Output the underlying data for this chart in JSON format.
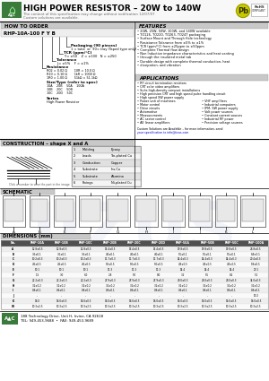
{
  "title": "HIGH POWER RESISTOR – 20W to 140W",
  "subtitle1": "The content of this specification may change without notification 12/07/07",
  "subtitle2": "Custom solutions are available.",
  "how_to_order_title": "HOW TO ORDER",
  "part_number": "RHP-10A-100 F Y B",
  "packaging_title": "Packaging (90 pieces)",
  "packaging_text": "1 = tube  or  90= tray (Taped type only)",
  "tcr_title": "TCR (ppm/°C)",
  "tcr_text": "Y = ±50    Z = ±100   N = ±250",
  "tolerance_title": "Tolerance",
  "tolerance_text": "J = ±5%    F = ±1%",
  "resistance_title": "Resistance",
  "resistance_lines": [
    "R02 = 0.02 Ω       10R = 10.0 Ω",
    "R10 = 0.10 Ω       1kR = 1000 Ω",
    "1R0 = 1.00 Ω       51kΩ = 51.1kΩ"
  ],
  "size_title": "Size/Type (refer to spec)",
  "size_lines": [
    "10A    20B    50A    100A",
    "10B    20C    50B",
    "10C    20D    50C"
  ],
  "series_title": "Series",
  "series_text": "High Power Resistor",
  "features_title": "FEATURES",
  "features": [
    "20W, 25W, 50W, 100W, and 140W available",
    "TO126, TO220, TO263, TO247 packaging",
    "Surface Mount and Through Hole technology",
    "Resistance Tolerance from ±5% to ±1%",
    "TCR (ppm/°C) from ±25ppm to ±50ppm",
    "Complete Thermal flow design",
    "Non Inductive impedance characteristics and heat venting",
    "through the insulated metal tab",
    "Durable design with complete thermal conduction, heat",
    "dissipation, and vibration"
  ],
  "applications_title": "APPLICATIONS",
  "applications_col1": [
    "RF circuit termination resistors",
    "CRT color video amplifiers",
    "Suits high-density compact installations",
    "High precision CRT and high speed pulse handling circuit",
    "High speed SW power supply",
    "Power unit of machines",
    "Motor control",
    "Drive circuits",
    "Automotive",
    "Measurements",
    "AC sector control",
    "AE linear amplifiers"
  ],
  "applications_col2": [
    "VHF amplifiers",
    "Industrial computers",
    "IPM, SW power supply",
    "Volt power sources",
    "Constant current sources",
    "Industrial RF power",
    "Precision voltage sources"
  ],
  "custom_line1": "Custom Solutions are Available – for more information, send",
  "custom_line2": "your specification to info@iizus.com",
  "construction_title": "CONSTRUCTION – shape X and A",
  "construction_note": "Click a number to view the part in the image",
  "construction_table": [
    [
      "1",
      "Molding",
      "Epoxy"
    ],
    [
      "2",
      "Leads",
      "Tin-plated Cu"
    ],
    [
      "3",
      "Conduction",
      "Copper"
    ],
    [
      "4",
      "Substrate",
      "Ins.Cu"
    ],
    [
      "5",
      "Substrate",
      "Alumina"
    ],
    [
      "6",
      "Fixings",
      "Ni-plated Cu"
    ]
  ],
  "schematic_title": "SCHEMATIC",
  "schematic_labels": [
    "A",
    "B",
    "E",
    "F",
    "G",
    "H",
    "I",
    "J",
    "K",
    "L"
  ],
  "dimensions_title": "DIMENSIONS (mm)",
  "dim_cols": [
    "No.",
    "RHP-10A",
    "RHP-10B",
    "RHP-10C",
    "RHP-20B",
    "RHP-20C",
    "RHP-20D",
    "RHP-50A",
    "RHP-50B",
    "RHP-50C",
    "RHP-100A"
  ],
  "dim_rows": [
    [
      "A",
      "12.8±0.5",
      "12.8±0.5",
      "12.8±0.5",
      "15.4±0.5",
      "15.4±0.5",
      "15.4±0.5",
      "19.8±0.5",
      "19.8±0.5",
      "19.8±0.5",
      "26.8±0.5"
    ],
    [
      "B",
      "3.5±0.1",
      "3.5±0.1",
      "3.5±0.1",
      "4.0±0.1",
      "4.0±0.1",
      "4.0±0.1",
      "5.5±0.1",
      "5.5±0.1",
      "5.5±0.1",
      "6.8±0.1"
    ],
    [
      "C",
      "10.2±0.3",
      "10.2±0.3",
      "10.2±0.3",
      "11.7±0.3",
      "11.7±0.3",
      "11.7±0.3",
      "14.4±0.3",
      "14.4±0.3",
      "14.4±0.3",
      "20.4±0.3"
    ],
    [
      "D",
      "4.5±0.5",
      "4.5±0.5",
      "4.5±0.5",
      "5.0±0.5",
      "5.0±0.5",
      "5.0±0.5",
      "4.9±0.5",
      "4.9±0.5",
      "4.9±0.5",
      "5.8±0.5"
    ],
    [
      "E",
      "10.1",
      "10.1",
      "10.1",
      "11.3",
      "11.3",
      "11.3",
      "14.4",
      "14.4",
      "14.4",
      "20.1"
    ],
    [
      "F",
      "1.5",
      "3.0",
      "6.0",
      "2.8",
      "5.0",
      "8.0",
      "3.2",
      "5.5",
      "8.2",
      "5.2"
    ],
    [
      "G",
      "22.2±0.3",
      "22.2±0.3",
      "22.2±0.3",
      "27.9±0.3",
      "27.9±0.3",
      "27.9±0.3",
      "28.0±0.3",
      "28.0±0.3",
      "28.0±0.3",
      "34.0±0.3"
    ],
    [
      "H",
      "3.2±0.2",
      "3.2±0.2",
      "3.2±0.2",
      "3.2±0.2",
      "3.2±0.2",
      "3.2±0.2",
      "3.2±0.2",
      "3.2±0.2",
      "3.2±0.2",
      "3.2±0.2"
    ],
    [
      "I",
      "0.8±0.1",
      "0.8±0.1",
      "0.8±0.1",
      "0.8±0.1",
      "0.8±0.1",
      "0.8±0.1",
      "0.8±0.1",
      "0.8±0.1",
      "0.8±0.1",
      "0.8±0.1"
    ],
    [
      "J",
      "-",
      "-",
      "-",
      "-",
      "-",
      "-",
      "-",
      "-",
      "-",
      "10.2"
    ],
    [
      "K",
      "16.0",
      "16.0±0.5",
      "16.0±0.5",
      "16.0±0.5",
      "16.0±0.5",
      "16.0±0.5",
      "16.0±0.5",
      "16.0±0.5",
      "16.0±0.5",
      "16.0±0.5"
    ],
    [
      "W",
      "10.3±2.5",
      "10.3±2.5",
      "10.3±2.5",
      "10.3±2.5",
      "10.3±2.5",
      "10.3±2.5",
      "10.3±2.5",
      "10.3±2.5",
      "10.3±2.5",
      "10.3±2.5"
    ]
  ],
  "footer_address": "188 Technology Drive, Unit H, Irvine, CA 92618",
  "footer_tel": "TEL: 949-453-9688  •  FAX: 949-453-9689",
  "bg_color": "#ffffff",
  "gray_section": "#c8c8c8",
  "dim_header_bg": "#505050",
  "watermark_color": "#dde0f0",
  "pb_color": "#c8c800",
  "green_logo": "#3a7a3a"
}
